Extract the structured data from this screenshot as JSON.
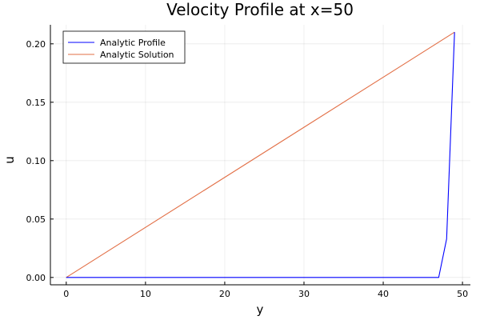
{
  "chart_data": {
    "type": "line",
    "title": "Velocity Profile at x=50",
    "xlabel": "y",
    "ylabel": "u",
    "xlim": [
      -2.0,
      51.0
    ],
    "ylim": [
      -0.0063,
      0.2163
    ],
    "grid": true,
    "legend_position": "top-left",
    "xticks": [
      0,
      10,
      20,
      30,
      40,
      50
    ],
    "xtick_labels": [
      "0",
      "10",
      "20",
      "30",
      "40",
      "50"
    ],
    "yticks": [
      0.0,
      0.05,
      0.1,
      0.15,
      0.2
    ],
    "ytick_labels": [
      "0.00",
      "0.05",
      "0.10",
      "0.15",
      "0.20"
    ],
    "series": [
      {
        "name": "Analytic Profile",
        "color": "#0000ff",
        "x": [
          0,
          1,
          2,
          3,
          4,
          5,
          6,
          7,
          8,
          9,
          10,
          11,
          12,
          13,
          14,
          15,
          16,
          17,
          18,
          19,
          20,
          21,
          22,
          23,
          24,
          25,
          26,
          27,
          28,
          29,
          30,
          31,
          32,
          33,
          34,
          35,
          36,
          37,
          38,
          39,
          40,
          41,
          42,
          43,
          44,
          45,
          46,
          47,
          48,
          49
        ],
        "y": [
          0,
          0,
          0,
          0,
          0,
          0,
          0,
          0,
          0,
          0,
          0,
          0,
          0,
          0,
          0,
          0,
          0,
          0,
          0,
          0,
          0,
          0,
          0,
          0,
          0,
          0,
          0,
          0,
          0,
          0,
          0,
          0,
          0,
          0,
          0,
          0,
          0,
          0,
          0,
          0,
          0,
          0,
          0,
          0,
          0,
          0,
          0,
          0,
          0.033,
          0.21
        ]
      },
      {
        "name": "Analytic Solution",
        "color": "#e26f46",
        "x": [
          0,
          49
        ],
        "y": [
          0,
          0.21
        ]
      }
    ]
  }
}
